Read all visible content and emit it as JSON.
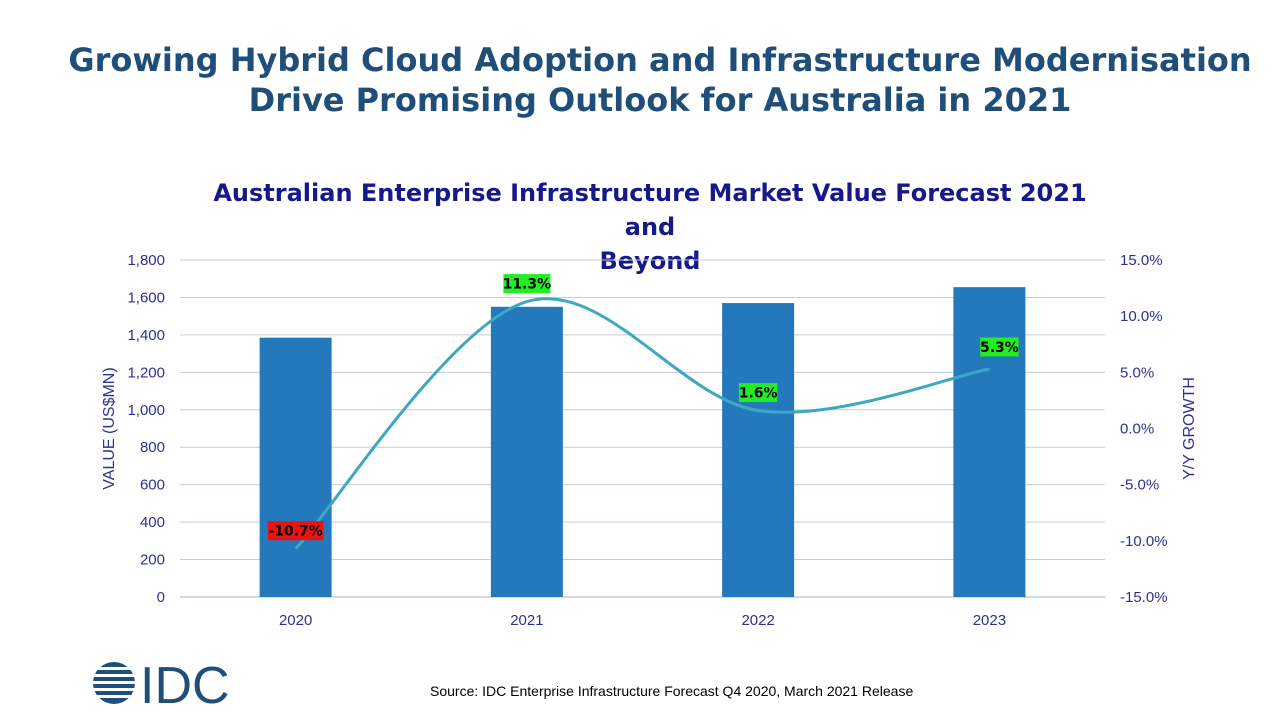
{
  "headline": {
    "line1": "Growing Hybrid Cloud Adoption and Infrastructure Modernisation",
    "line2": "Drive Promising Outlook for Australia in 2021"
  },
  "source": "Source: IDC Enterprise Infrastructure Forecast Q4 2020, March 2021 Release",
  "logo": {
    "text": "IDC",
    "color": "#1f4e79"
  },
  "colors": {
    "bar": "#2479bd",
    "line": "#3ea8c4",
    "positive_label_bg": "#22ee22",
    "negative_label_bg": "#ee1111",
    "axis_text": "#2e3192"
  },
  "chart_data": {
    "type": "bar",
    "title": "Australian Enterprise Infrastructure Market Value Forecast 2021 and Beyond",
    "title_lines": [
      "Australian Enterprise Infrastructure Market Value Forecast 2021 and",
      "Beyond"
    ],
    "categories": [
      "2020",
      "2021",
      "2022",
      "2023"
    ],
    "series": [
      {
        "type": "bar",
        "axis": "left",
        "values": [
          1385,
          1550,
          1570,
          1655
        ]
      },
      {
        "type": "line",
        "axis": "right",
        "smooth": true,
        "values": [
          -10.7,
          11.3,
          1.6,
          5.3
        ],
        "labels": [
          "-10.7%",
          "11.3%",
          "1.6%",
          "5.3%"
        ]
      }
    ],
    "ylabel": "VALUE (US$MN)",
    "y2label": "Y/Y GROWTH",
    "ylim": [
      0,
      1800
    ],
    "y2lim": [
      -15,
      15
    ],
    "yticks": [
      "0",
      "200",
      "400",
      "600",
      "800",
      "1,000",
      "1,200",
      "1,400",
      "1,600",
      "1,800"
    ],
    "y2ticks": [
      "-15.0%",
      "-10.0%",
      "-5.0%",
      "0.0%",
      "5.0%",
      "10.0%",
      "15.0%"
    ],
    "grid": true,
    "legend": "none"
  }
}
